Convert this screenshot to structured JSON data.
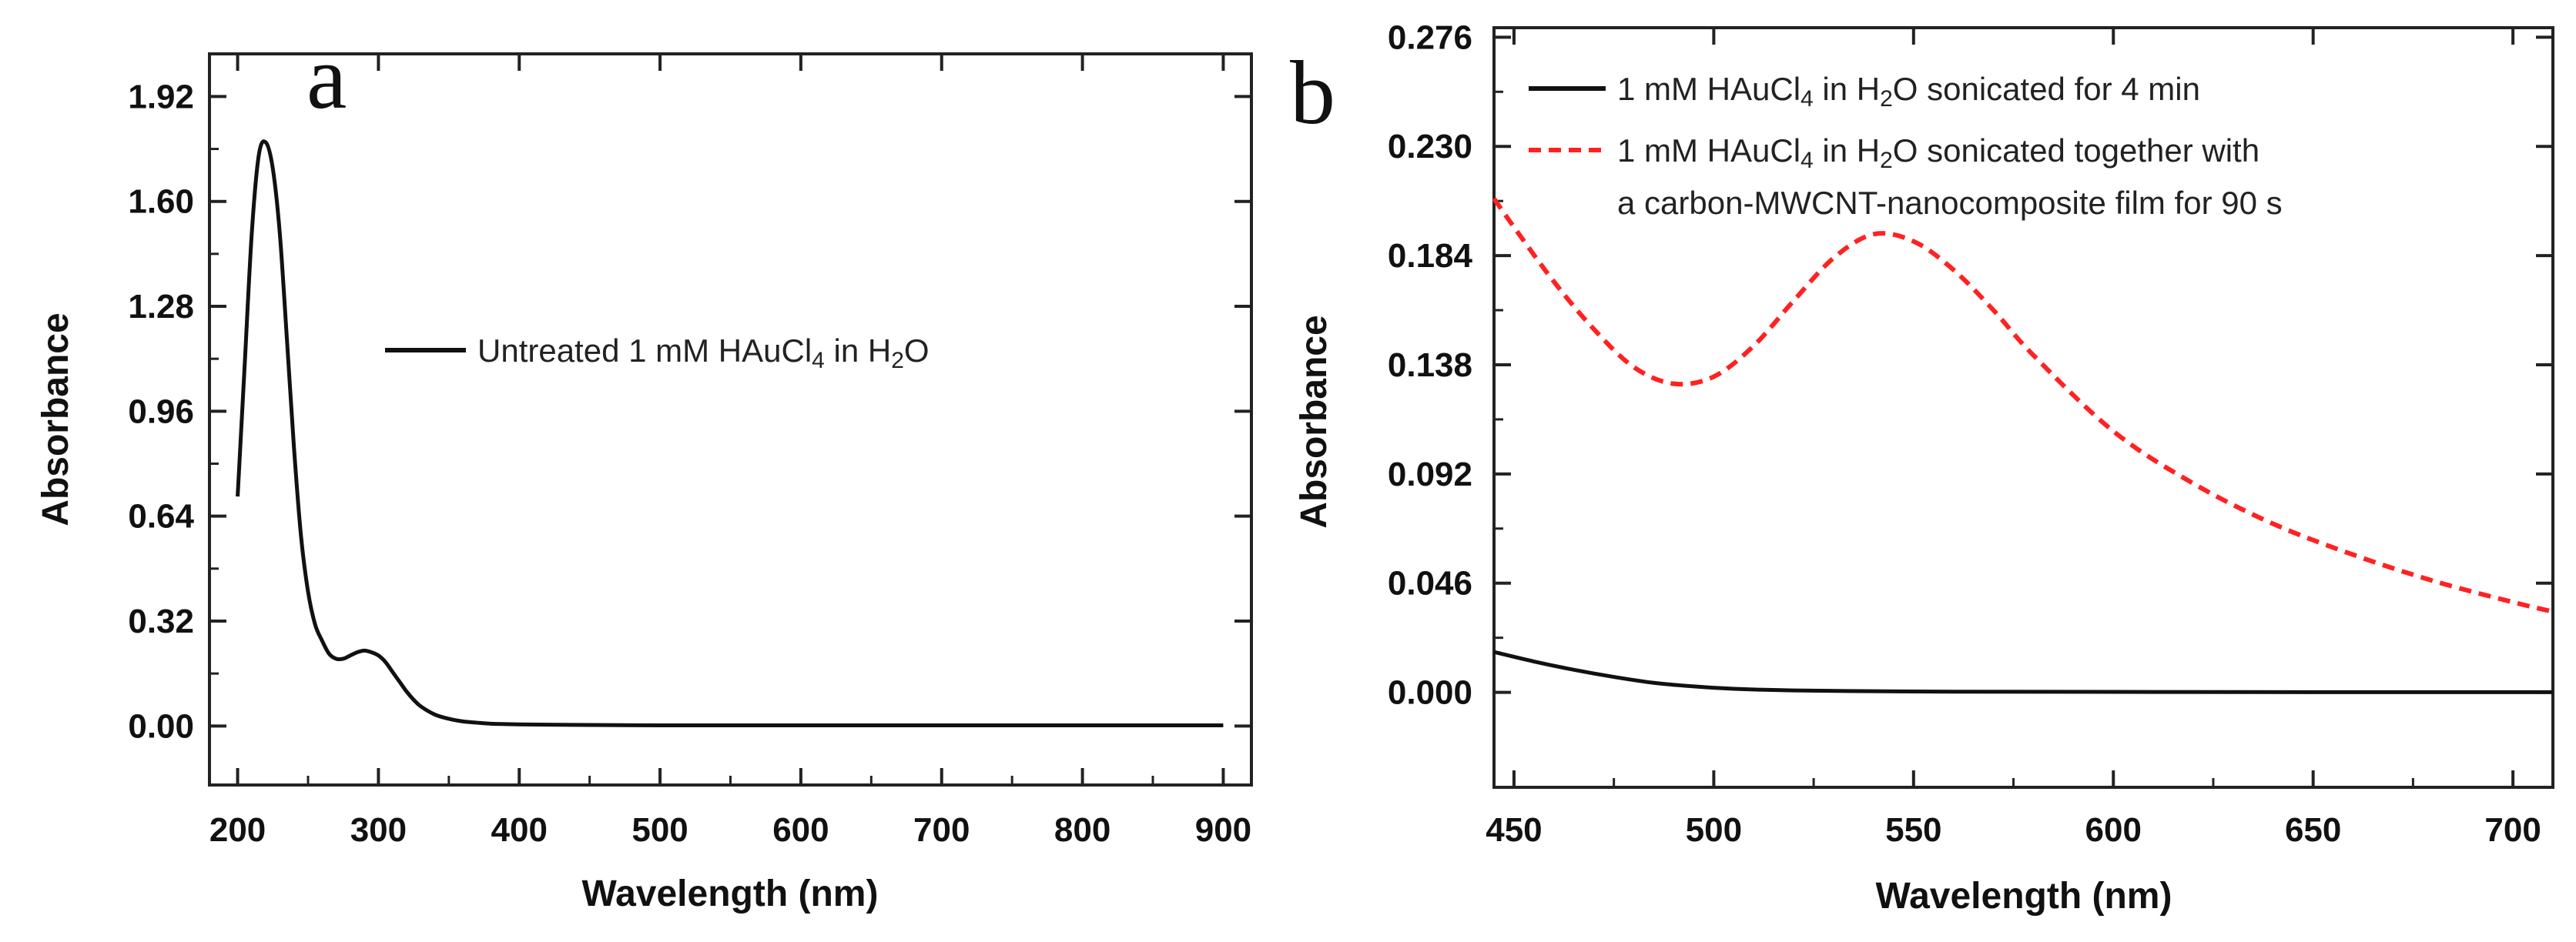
{
  "chart_data": [
    {
      "type": "line",
      "panel": "a",
      "xlabel": "Wavelength (nm)",
      "ylabel": "Absorbance",
      "xlim": [
        180,
        920
      ],
      "ylim": [
        -0.18,
        2.05
      ],
      "xticks": [
        200,
        300,
        400,
        500,
        600,
        700,
        800,
        900
      ],
      "yticks": [
        0.0,
        0.32,
        0.64,
        0.96,
        1.28,
        1.6,
        1.92
      ],
      "ytick_labels": [
        "0.00",
        "0.32",
        "0.64",
        "0.96",
        "1.28",
        "1.60",
        "1.92"
      ],
      "legend_location": "middle-right",
      "series": [
        {
          "name": "Untreated 1 mM HAuCl4 in H2O",
          "legend": {
            "pre": "Untreated 1 mM HAuCl",
            "s1": "4",
            "mid": " in H",
            "s2": "2",
            "post": "O"
          },
          "color": "#111111",
          "dash": "solid",
          "x": [
            200,
            205,
            210,
            215,
            220,
            225,
            230,
            235,
            240,
            245,
            250,
            255,
            260,
            265,
            270,
            275,
            280,
            285,
            290,
            295,
            300,
            305,
            310,
            315,
            320,
            325,
            330,
            340,
            350,
            360,
            370,
            380,
            400,
            420,
            450,
            500,
            550,
            600,
            650,
            700,
            750,
            800,
            850,
            900
          ],
          "y": [
            0.7,
            1.1,
            1.5,
            1.74,
            1.78,
            1.7,
            1.5,
            1.18,
            0.85,
            0.58,
            0.41,
            0.31,
            0.26,
            0.22,
            0.205,
            0.205,
            0.215,
            0.225,
            0.23,
            0.225,
            0.215,
            0.195,
            0.165,
            0.135,
            0.105,
            0.08,
            0.06,
            0.035,
            0.022,
            0.014,
            0.01,
            0.007,
            0.005,
            0.004,
            0.003,
            0.002,
            0.002,
            0.002,
            0.002,
            0.002,
            0.002,
            0.002,
            0.002,
            0.002
          ]
        }
      ]
    },
    {
      "type": "line",
      "panel": "b",
      "xlabel": "Wavelength (nm)",
      "ylabel": "Absorbance",
      "xlim": [
        445,
        710
      ],
      "ylim": [
        -0.04,
        0.28
      ],
      "xticks": [
        450,
        500,
        550,
        600,
        650,
        700
      ],
      "yticks": [
        0.0,
        0.046,
        0.092,
        0.138,
        0.184,
        0.23,
        0.276
      ],
      "ytick_labels": [
        "0.000",
        "0.046",
        "0.092",
        "0.138",
        "0.184",
        "0.230",
        "0.276"
      ],
      "legend_location": "top",
      "series": [
        {
          "name": "1 mM HAuCl4 in H2O sonicated for 4 min",
          "legend": {
            "pre": "1 mM HAuCl",
            "s1": "4",
            "mid": " in H",
            "s2": "2",
            "post": "O sonicated for 4 min"
          },
          "color": "#111111",
          "dash": "solid",
          "x": [
            445,
            455,
            465,
            475,
            485,
            495,
            505,
            520,
            540,
            560,
            600,
            650,
            710
          ],
          "y": [
            0.017,
            0.013,
            0.0095,
            0.0065,
            0.004,
            0.0025,
            0.0015,
            0.0008,
            0.0005,
            0.0003,
            0.0002,
            0.0001,
            0.0001
          ]
        },
        {
          "name": "1 mM HAuCl4 in H2O sonicated together with a carbon-MWCNT-nanocomposite film for 90 s",
          "legend": {
            "pre": "1 mM HAuCl",
            "s1": "4",
            "mid": " in H",
            "s2": "2",
            "post": "O sonicated together with",
            "line2": "a carbon-MWCNT-nanocomposite film for 90 s"
          },
          "color": "#ff2222",
          "dash": "dashed",
          "x": [
            445,
            450,
            460,
            470,
            480,
            490,
            500,
            510,
            520,
            530,
            540,
            550,
            560,
            570,
            580,
            600,
            620,
            640,
            660,
            680,
            700,
            710
          ],
          "y": [
            0.208,
            0.196,
            0.173,
            0.153,
            0.137,
            0.13,
            0.133,
            0.146,
            0.165,
            0.183,
            0.193,
            0.19,
            0.178,
            0.161,
            0.142,
            0.11,
            0.088,
            0.071,
            0.058,
            0.047,
            0.038,
            0.034
          ]
        }
      ]
    }
  ]
}
